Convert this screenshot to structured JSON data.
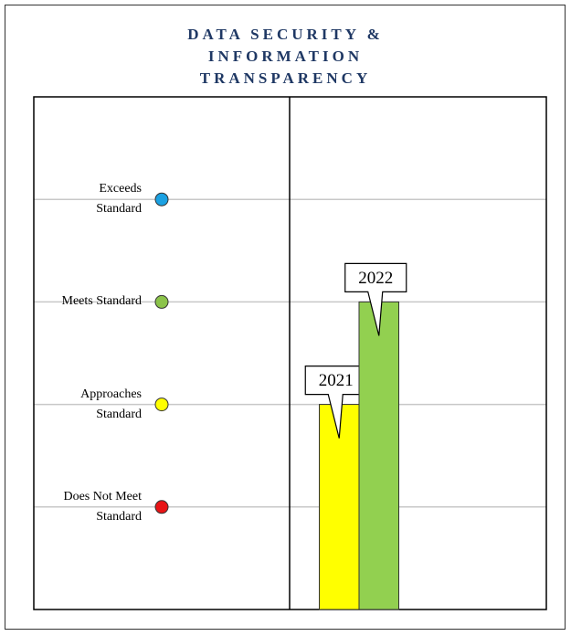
{
  "chart_data": {
    "type": "bar",
    "title": "DATA SECURITY & INFORMATION TRANSPARENCY",
    "series": [
      {
        "name": "2021",
        "color": "#ffff00",
        "values": [
          2
        ]
      },
      {
        "name": "2022",
        "color": "#92d050",
        "values": [
          3
        ]
      }
    ],
    "ylim": [
      0,
      5
    ],
    "yticks": [
      {
        "value": 1,
        "label": "Does Not Meet Standard"
      },
      {
        "value": 2,
        "label": "Approaches Standard"
      },
      {
        "value": 3,
        "label": "Meets Standard"
      },
      {
        "value": 4,
        "label": "Exceeds Standard"
      }
    ],
    "tick_colors": [
      "#e81416",
      "#ffff00",
      "#8bc34a",
      "#1ba1e2"
    ],
    "grid": true
  }
}
